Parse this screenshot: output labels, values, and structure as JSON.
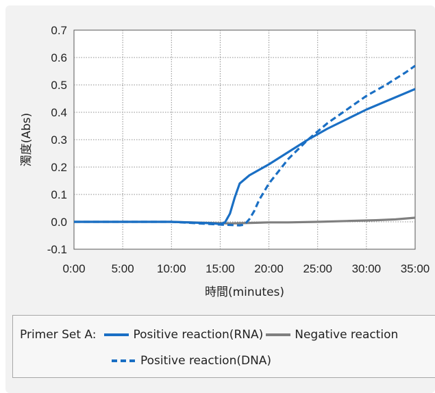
{
  "chart_data": {
    "type": "line",
    "xlabel": "時間(minutes)",
    "ylabel": "濁度(Abs)",
    "x_ticks": [
      "0:00",
      "5:00",
      "10:00",
      "15:00",
      "20:00",
      "25:00",
      "30:00",
      "35:00"
    ],
    "xlim": [
      0,
      35
    ],
    "y_ticks": [
      "-0.1",
      "0.0",
      "0.1",
      "0.2",
      "0.3",
      "0.4",
      "0.5",
      "0.6",
      "0.7"
    ],
    "ylim": [
      -0.1,
      0.7
    ],
    "grid": true,
    "legend_title": "Primer Set A:",
    "legend_position": "bottom",
    "series": [
      {
        "name": "Positive reaction(RNA)",
        "color": "#1a6fc4",
        "dash": "solid",
        "x": [
          0,
          10,
          14,
          15,
          15.5,
          16,
          16.5,
          17,
          18,
          20,
          22,
          24,
          26,
          28,
          30,
          32,
          34,
          35
        ],
        "y": [
          0.0,
          0.0,
          -0.005,
          -0.008,
          -0.002,
          0.03,
          0.09,
          0.14,
          0.17,
          0.21,
          0.255,
          0.3,
          0.34,
          0.375,
          0.41,
          0.44,
          0.47,
          0.485
        ]
      },
      {
        "name": "Negative reaction",
        "color": "#7f7f7f",
        "dash": "solid",
        "x": [
          0,
          10,
          14,
          16,
          18,
          20,
          22,
          25,
          28,
          31,
          33,
          35
        ],
        "y": [
          0.0,
          0.0,
          -0.004,
          -0.006,
          -0.004,
          -0.002,
          -0.002,
          0.0,
          0.003,
          0.006,
          0.009,
          0.015
        ]
      },
      {
        "name": "Positive reaction(DNA)",
        "color": "#1a6fc4",
        "dash": "dashed",
        "x": [
          0,
          10,
          15,
          17,
          17.5,
          18,
          18.5,
          19,
          20,
          22,
          24,
          26,
          28,
          30,
          32,
          34,
          35
        ],
        "y": [
          0.0,
          0.0,
          -0.01,
          -0.013,
          -0.01,
          0.01,
          0.04,
          0.08,
          0.14,
          0.23,
          0.3,
          0.36,
          0.41,
          0.46,
          0.5,
          0.545,
          0.57
        ]
      }
    ]
  }
}
